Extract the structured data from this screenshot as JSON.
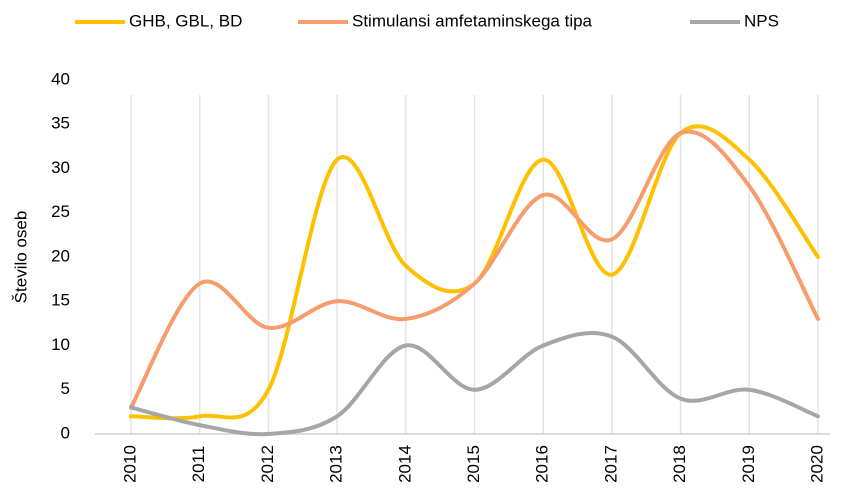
{
  "chart_data": {
    "type": "line",
    "y_label": "Število oseb",
    "categories": [
      "2010",
      "2011",
      "2012",
      "2013",
      "2014",
      "2015",
      "2016",
      "2017",
      "2018",
      "2019",
      "2020"
    ],
    "series": [
      {
        "name": "GHB, GBL, BD",
        "color": "#FFC000",
        "values": [
          2,
          2,
          5,
          31,
          19,
          17,
          31,
          18,
          34,
          31,
          20
        ]
      },
      {
        "name": "Stimulansi amfetaminskega tipa",
        "color": "#F79C6C",
        "values": [
          3,
          17,
          12,
          15,
          13,
          17,
          27,
          22,
          34,
          28,
          13
        ]
      },
      {
        "name": "NPS",
        "color": "#A6A6A6",
        "values": [
          3,
          1,
          0,
          2,
          10,
          5,
          10,
          11,
          4,
          5,
          2
        ]
      }
    ],
    "ylim": [
      0,
      40
    ],
    "yticks": [
      0,
      5,
      10,
      15,
      20,
      25,
      30,
      35,
      40
    ],
    "grid": "x",
    "legend": "top",
    "smooth": true
  }
}
